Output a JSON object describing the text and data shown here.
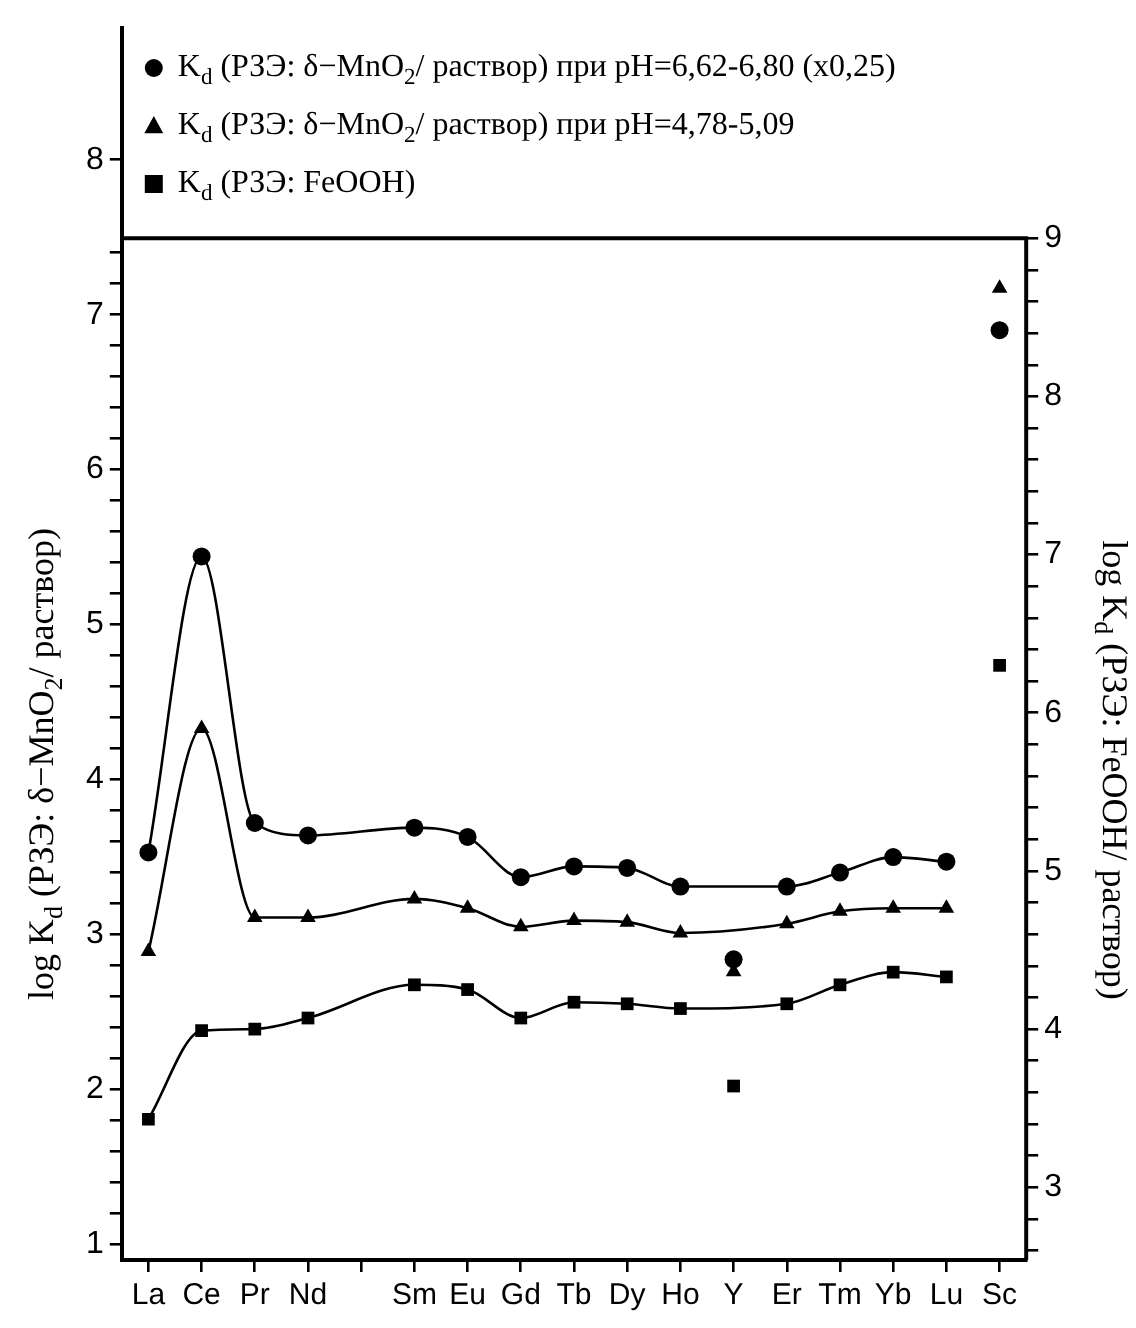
{
  "chart_data": {
    "type": "line",
    "ylabel": "log K$_{d}$ (РЗЭ: δ−MnO$_{2}$/ раствор)",
    "y2label": "log K$_{d}$ (РЗЭ: FeOOH/ раствор)",
    "categories": [
      "La",
      "Ce",
      "Pr",
      "Nd",
      null,
      "Sm",
      "Eu",
      "Gd",
      "Tb",
      "Dy",
      "Ho",
      "Y",
      "Er",
      "Tm",
      "Yb",
      "Lu",
      "Sc"
    ],
    "ylim": [
      0.9,
      8.85
    ],
    "yticks": [
      1,
      {
        "value": 1.2,
        "label": null
      },
      {
        "value": 1.4,
        "label": null
      },
      {
        "value": 1.6,
        "label": null
      },
      {
        "value": 1.8,
        "label": null
      },
      2,
      {
        "value": 2.2,
        "label": null
      },
      {
        "value": 2.4,
        "label": null
      },
      {
        "value": 2.6,
        "label": null
      },
      {
        "value": 2.8,
        "label": null
      },
      3,
      {
        "value": 3.2,
        "label": null
      },
      {
        "value": 3.4,
        "label": null
      },
      {
        "value": 3.6,
        "label": null
      },
      {
        "value": 3.8,
        "label": null
      },
      4,
      {
        "value": 4.2,
        "label": null
      },
      {
        "value": 4.4,
        "label": null
      },
      {
        "value": 4.6,
        "label": null
      },
      {
        "value": 4.8,
        "label": null
      },
      5,
      {
        "value": 5.2,
        "label": null
      },
      {
        "value": 5.4,
        "label": null
      },
      {
        "value": 5.6,
        "label": null
      },
      {
        "value": 5.8,
        "label": null
      },
      6,
      {
        "value": 6.2,
        "label": null
      },
      {
        "value": 6.4,
        "label": null
      },
      {
        "value": 6.6,
        "label": null
      },
      {
        "value": 6.8,
        "label": null
      },
      7,
      {
        "value": 7.2,
        "label": null
      },
      {
        "value": 7.4,
        "label": null
      },
      8
    ],
    "y2lim": [
      2.54,
      10.33
    ],
    "y2ticks": [
      {
        "value": 2.6,
        "label": null
      },
      {
        "value": 2.8,
        "label": null
      },
      3,
      {
        "value": 3.2,
        "label": null
      },
      {
        "value": 3.4,
        "label": null
      },
      {
        "value": 3.6,
        "label": null
      },
      {
        "value": 3.8,
        "label": null
      },
      4,
      {
        "value": 4.2,
        "label": null
      },
      {
        "value": 4.4,
        "label": null
      },
      {
        "value": 4.6,
        "label": null
      },
      {
        "value": 4.8,
        "label": null
      },
      5,
      {
        "value": 5.2,
        "label": null
      },
      {
        "value": 5.4,
        "label": null
      },
      {
        "value": 5.6,
        "label": null
      },
      {
        "value": 5.8,
        "label": null
      },
      6,
      {
        "value": 6.2,
        "label": null
      },
      {
        "value": 6.4,
        "label": null
      },
      {
        "value": 6.6,
        "label": null
      },
      {
        "value": 6.8,
        "label": null
      },
      7,
      {
        "value": 7.2,
        "label": null
      },
      {
        "value": 7.4,
        "label": null
      },
      {
        "value": 7.6,
        "label": null
      },
      {
        "value": 7.8,
        "label": null
      },
      8,
      {
        "value": 8.2,
        "label": null
      },
      {
        "value": 8.4,
        "label": null
      },
      {
        "value": 8.6,
        "label": null
      },
      {
        "value": 8.8,
        "label": null
      },
      9
    ],
    "legend": "top left",
    "grid": false,
    "series": [
      {
        "name": "K$_{d}$ (РЗЭ: δ−MnO$_{2}$/ раствор) при pH=6,62-6,80 (x0,25)",
        "marker": "circle",
        "color": "#000000",
        "x": [
          "La",
          "Ce",
          "Pr",
          "Nd",
          "Sm",
          "Eu",
          "Gd",
          "Tb",
          "Dy",
          "Ho",
          "Er",
          "Tm",
          "Yb",
          "Lu"
        ],
        "values": [
          3.53,
          5.44,
          3.72,
          3.64,
          3.69,
          3.63,
          3.37,
          3.44,
          3.43,
          3.31,
          3.31,
          3.4,
          3.5,
          3.47
        ]
      },
      {
        "name": "K$_{d}$ (РЗЭ: δ−MnO$_{2}$/ раствор) при pH=4,78-5,09",
        "marker": "triangle",
        "color": "#000000",
        "x": [
          "La",
          "Ce",
          "Pr",
          "Nd",
          "Sm",
          "Eu",
          "Gd",
          "Tb",
          "Dy",
          "Ho",
          "Er",
          "Tm",
          "Yb",
          "Lu"
        ],
        "values": [
          2.89,
          4.33,
          3.11,
          3.11,
          3.23,
          3.17,
          3.05,
          3.09,
          3.08,
          3.01,
          3.07,
          3.15,
          3.17,
          3.17
        ]
      },
      {
        "name": "K$_{d}$ (РЗЭ: FeOOH)",
        "marker": "square",
        "axis": "y2",
        "color": "#000000",
        "x": [
          "La",
          "Ce",
          "Pr",
          "Nd",
          "Sm",
          "Eu",
          "Gd",
          "Tb",
          "Dy",
          "Ho",
          "Er",
          "Tm",
          "Yb",
          "Lu"
        ],
        "values": [
          3.43,
          3.99,
          4.0,
          4.07,
          4.28,
          4.25,
          4.07,
          4.17,
          4.16,
          4.13,
          4.16,
          4.28,
          4.36,
          4.33
        ]
      },
      {
        "type": "scatter",
        "marker": "circle",
        "color": "#000000",
        "x": [
          "Y",
          "Sc"
        ],
        "values": [
          2.84,
          6.9
        ]
      },
      {
        "type": "scatter",
        "marker": "triangle",
        "color": "#000000",
        "x": [
          "Y",
          "Sc"
        ],
        "values": [
          2.76,
          7.17
        ]
      },
      {
        "type": "scatter",
        "marker": "square",
        "axis": "y2",
        "color": "#000000",
        "x": [
          "Y",
          "Sc"
        ],
        "values": [
          3.64,
          6.3
        ]
      }
    ]
  }
}
